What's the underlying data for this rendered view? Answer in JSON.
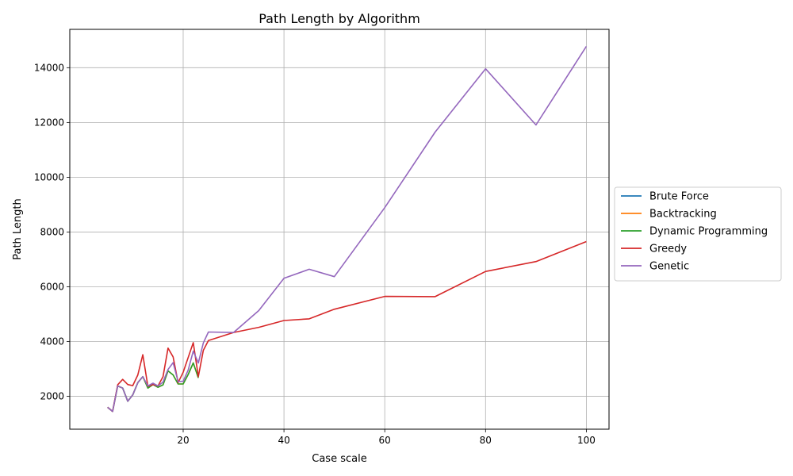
{
  "chart_data": {
    "type": "line",
    "title": "Path Length by Algorithm",
    "xlabel": "Case scale",
    "ylabel": "Path Length",
    "xlim": [
      -2.5,
      104.5
    ],
    "ylim": [
      800,
      15400
    ],
    "xticks": [
      20,
      40,
      60,
      80,
      100
    ],
    "yticks": [
      2000,
      4000,
      6000,
      8000,
      10000,
      12000,
      14000
    ],
    "grid": true,
    "legend_position": "center-right-outside",
    "series": [
      {
        "name": "Brute Force",
        "color": "#1f77b4",
        "x": [
          5,
          6,
          7,
          8,
          9,
          10,
          11,
          12
        ],
        "y": [
          1600,
          1450,
          2380,
          2300,
          1820,
          2050,
          2500,
          2720
        ]
      },
      {
        "name": "Backtracking",
        "color": "#ff7f0e",
        "x": [
          5,
          6,
          7,
          8,
          9,
          10,
          11,
          12,
          13,
          14,
          15,
          16,
          17,
          18,
          19,
          20,
          21,
          22,
          23
        ],
        "y": [
          1600,
          1450,
          2380,
          2300,
          1820,
          2050,
          2500,
          2720,
          2300,
          2430,
          2330,
          2420,
          2930,
          2780,
          2450,
          2450,
          2800,
          3220,
          2670
        ]
      },
      {
        "name": "Dynamic Programming",
        "color": "#2ca02c",
        "x": [
          5,
          6,
          7,
          8,
          9,
          10,
          11,
          12,
          13,
          14,
          15,
          16,
          17,
          18,
          19,
          20,
          21,
          22,
          23
        ],
        "y": [
          1600,
          1450,
          2380,
          2300,
          1820,
          2050,
          2500,
          2720,
          2300,
          2430,
          2330,
          2420,
          2930,
          2780,
          2450,
          2450,
          2800,
          3220,
          2670
        ]
      },
      {
        "name": "Greedy",
        "color": "#d62728",
        "x": [
          5,
          6,
          7,
          8,
          9,
          10,
          11,
          12,
          13,
          14,
          15,
          16,
          17,
          18,
          19,
          20,
          21,
          22,
          23,
          24,
          25,
          30,
          35,
          40,
          45,
          50,
          60,
          70,
          80,
          90,
          100
        ],
        "y": [
          1600,
          1450,
          2420,
          2620,
          2430,
          2390,
          2780,
          3520,
          2360,
          2430,
          2380,
          2720,
          3760,
          3440,
          2500,
          2880,
          3420,
          3960,
          2720,
          3680,
          4040,
          4330,
          4520,
          4770,
          4830,
          5180,
          5650,
          5640,
          6560,
          6920,
          7650
        ]
      },
      {
        "name": "Genetic",
        "color": "#9467bd",
        "x": [
          5,
          6,
          7,
          8,
          9,
          10,
          11,
          12,
          13,
          14,
          15,
          16,
          17,
          18,
          19,
          20,
          21,
          22,
          23,
          24,
          25,
          30,
          35,
          40,
          45,
          50,
          60,
          70,
          80,
          90,
          100
        ],
        "y": [
          1600,
          1450,
          2380,
          2300,
          1820,
          2050,
          2500,
          2720,
          2380,
          2480,
          2380,
          2520,
          2980,
          3230,
          2540,
          2550,
          2960,
          3650,
          3220,
          3950,
          4350,
          4330,
          5130,
          6310,
          6640,
          6370,
          8890,
          11650,
          13960,
          11910,
          14780
        ]
      }
    ]
  }
}
